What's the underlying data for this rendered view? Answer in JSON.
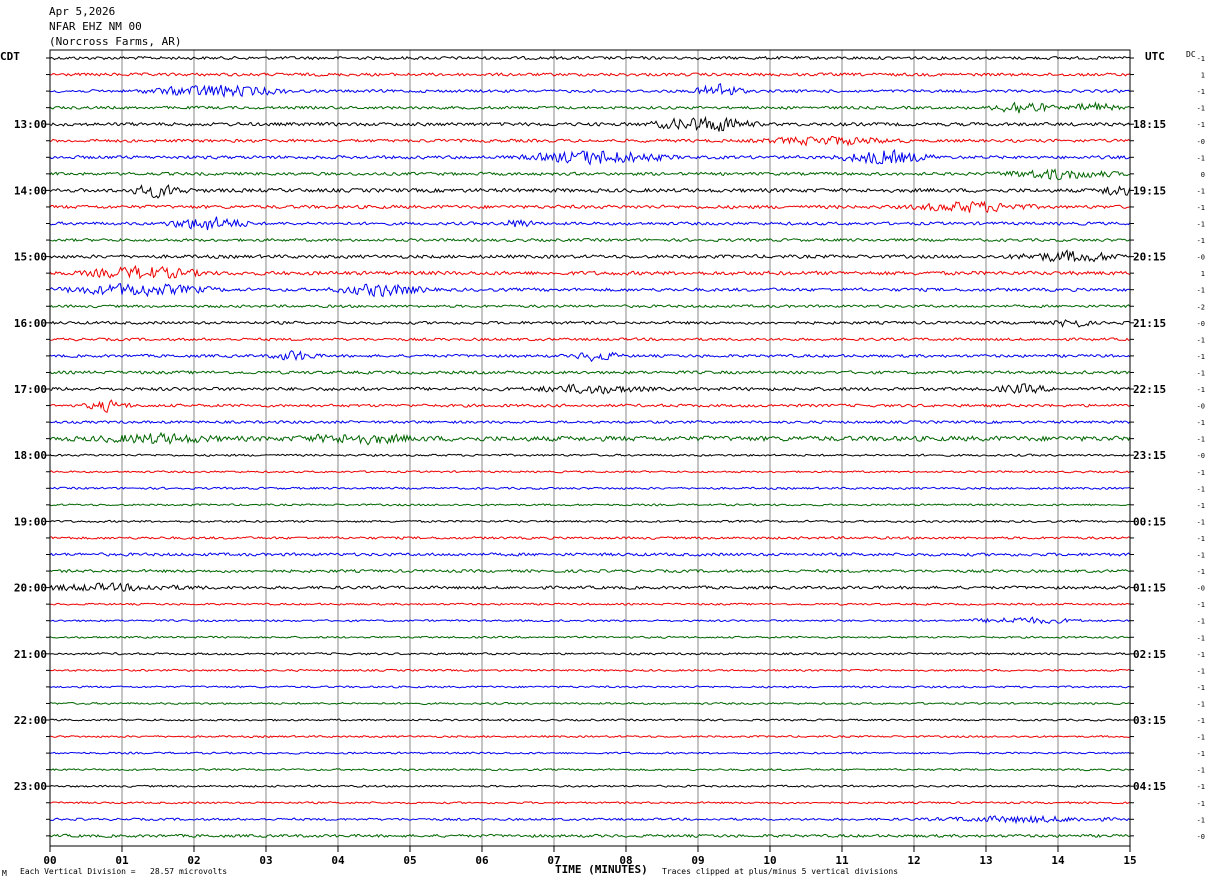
{
  "header": {
    "date": "Apr 5,2026",
    "station": "NFAR EHZ NM 00",
    "location": "(Norcross Farms, AR)"
  },
  "left_axis_title": "CDT",
  "right_axis_title": "UTC",
  "dc_label": "DC",
  "footer": {
    "left_mark": "M",
    "scale_note": "Each Vertical Division =   28.57 microvolts",
    "xlabel": "TIME (MINUTES)",
    "clip_note": "Traces clipped at plus/minus 5 vertical divisions"
  },
  "colors": {
    "trace_cycle": [
      "#000000",
      "#ee0000",
      "#0000ee",
      "#006600"
    ],
    "grid": "#888888",
    "frame": "#000000"
  },
  "chart_data": {
    "type": "line",
    "description_type": "helicorder",
    "xlabel": "TIME (MINUTES)",
    "xlim": [
      0,
      15
    ],
    "x_ticks": [
      "00",
      "01",
      "02",
      "03",
      "04",
      "05",
      "06",
      "07",
      "08",
      "09",
      "10",
      "11",
      "12",
      "13",
      "14",
      "15"
    ],
    "rows": 48,
    "row_minutes": 15,
    "left_hour_labels": [
      "13:00",
      "14:00",
      "15:00",
      "16:00",
      "17:00",
      "18:00",
      "19:00",
      "20:00",
      "21:00",
      "22:00",
      "23:00"
    ],
    "left_label_rows": [
      4,
      8,
      12,
      16,
      20,
      24,
      28,
      32,
      36,
      40,
      44
    ],
    "right_hour_labels": [
      "18:15",
      "19:15",
      "20:15",
      "21:15",
      "22:15",
      "23:15",
      "00:15",
      "01:15",
      "02:15",
      "03:15",
      "04:15"
    ],
    "right_label_rows": [
      4,
      8,
      12,
      16,
      20,
      24,
      28,
      32,
      36,
      40,
      44
    ],
    "dc_offsets": [
      "-1",
      "1",
      "-1",
      "-1",
      "-1",
      "-0",
      "-1",
      "0",
      "-1",
      "-1",
      "-1",
      "-1",
      "-0",
      "1",
      "-1",
      "-2",
      "-0",
      "-1",
      "-1",
      "-1",
      "-1",
      "-0",
      "-1",
      "-1",
      "-0",
      "-1",
      "-1",
      "-1",
      "-1",
      "-1",
      "-1",
      "-1",
      "-0",
      "-1",
      "-1",
      "-1",
      "-1",
      "-1",
      "-1",
      "-1",
      "-1",
      "-1",
      "-1",
      "-1",
      "-1",
      "-1",
      "-1",
      "-0"
    ],
    "noise_levels": [
      1.6,
      1.6,
      1.5,
      1.5,
      1.8,
      1.6,
      1.7,
      1.6,
      2.0,
      1.8,
      1.6,
      1.5,
      1.8,
      2.0,
      1.7,
      1.4,
      1.5,
      1.4,
      1.5,
      1.6,
      1.8,
      1.5,
      1.4,
      2.6,
      1.1,
      1.0,
      1.1,
      1.0,
      1.1,
      1.3,
      1.6,
      1.5,
      1.6,
      1.0,
      1.0,
      1.0,
      1.1,
      1.0,
      1.0,
      1.0,
      1.0,
      1.0,
      1.0,
      1.0,
      1.0,
      1.0,
      1.2,
      1.5
    ],
    "events": [
      {
        "row": 2,
        "minute": 2.3,
        "amplitude": 6,
        "duration": 1.2
      },
      {
        "row": 2,
        "minute": 9.3,
        "amplitude": 8,
        "duration": 0.4
      },
      {
        "row": 3,
        "minute": 13.5,
        "amplitude": 7,
        "duration": 0.5
      },
      {
        "row": 3,
        "minute": 14.5,
        "amplitude": 5,
        "duration": 0.4
      },
      {
        "row": 4,
        "minute": 8.9,
        "amplitude": 6,
        "duration": 0.7
      },
      {
        "row": 4,
        "minute": 9.4,
        "amplitude": 5,
        "duration": 0.5
      },
      {
        "row": 5,
        "minute": 10.8,
        "amplitude": 4,
        "duration": 1.2
      },
      {
        "row": 6,
        "minute": 7.6,
        "amplitude": 7,
        "duration": 1.2
      },
      {
        "row": 6,
        "minute": 11.6,
        "amplitude": 7,
        "duration": 0.8
      },
      {
        "row": 7,
        "minute": 14.0,
        "amplitude": 5,
        "duration": 1.0
      },
      {
        "row": 8,
        "minute": 1.5,
        "amplitude": 6,
        "duration": 0.5
      },
      {
        "row": 8,
        "minute": 14.8,
        "amplitude": 6,
        "duration": 0.3
      },
      {
        "row": 9,
        "minute": 12.8,
        "amplitude": 5,
        "duration": 1.0
      },
      {
        "row": 10,
        "minute": 2.2,
        "amplitude": 7,
        "duration": 0.7
      },
      {
        "row": 10,
        "minute": 6.5,
        "amplitude": 4,
        "duration": 0.3
      },
      {
        "row": 12,
        "minute": 14.2,
        "amplitude": 5,
        "duration": 1.0
      },
      {
        "row": 13,
        "minute": 1.3,
        "amplitude": 6,
        "duration": 1.0
      },
      {
        "row": 14,
        "minute": 1.2,
        "amplitude": 6,
        "duration": 1.3
      },
      {
        "row": 14,
        "minute": 4.6,
        "amplitude": 6,
        "duration": 0.8
      },
      {
        "row": 16,
        "minute": 14.2,
        "amplitude": 5,
        "duration": 0.3
      },
      {
        "row": 18,
        "minute": 3.4,
        "amplitude": 5,
        "duration": 0.4
      },
      {
        "row": 18,
        "minute": 7.6,
        "amplitude": 5,
        "duration": 0.4
      },
      {
        "row": 20,
        "minute": 7.5,
        "amplitude": 4,
        "duration": 1.0
      },
      {
        "row": 20,
        "minute": 13.5,
        "amplitude": 4,
        "duration": 0.5
      },
      {
        "row": 21,
        "minute": 0.8,
        "amplitude": 5,
        "duration": 0.4
      },
      {
        "row": 23,
        "minute": 1.5,
        "amplitude": 4,
        "duration": 1.0
      },
      {
        "row": 23,
        "minute": 4.3,
        "amplitude": 4,
        "duration": 1.0
      },
      {
        "row": 32,
        "minute": 0.8,
        "amplitude": 3,
        "duration": 1.5
      },
      {
        "row": 34,
        "minute": 13.5,
        "amplitude": 3,
        "duration": 1.0
      },
      {
        "row": 46,
        "minute": 13.5,
        "amplitude": 3,
        "duration": 1.5
      }
    ]
  }
}
